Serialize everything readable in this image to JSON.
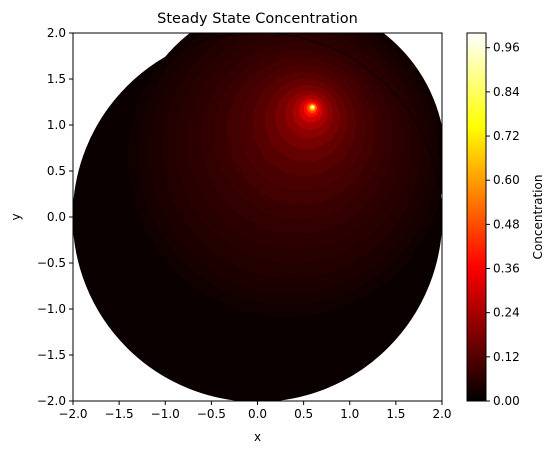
{
  "chart_data": {
    "type": "heatmap",
    "title": "Steady State Concentration",
    "xlabel": "x",
    "ylabel": "y",
    "xlim": [
      -2.0,
      2.0
    ],
    "ylim": [
      -2.0,
      2.0
    ],
    "x_ticks": [
      "−2.0",
      "−1.5",
      "−1.0",
      "−0.5",
      "0.0",
      "0.5",
      "1.0",
      "1.5",
      "2.0"
    ],
    "y_ticks": [
      "−2.0",
      "−1.5",
      "−1.0",
      "−0.5",
      "0.0",
      "0.5",
      "1.0",
      "1.5",
      "2.0"
    ],
    "domain": {
      "shape": "disk",
      "center": [
        0.0,
        0.0
      ],
      "radius": 2.0
    },
    "source_peak": {
      "x": 0.6,
      "y": 1.2,
      "value": 1.0
    },
    "colorbar": {
      "label": "Concentration",
      "colormap": "hot",
      "range": [
        0.0,
        1.0
      ],
      "ticks": [
        "0.00",
        "0.12",
        "0.24",
        "0.36",
        "0.48",
        "0.60",
        "0.72",
        "0.84",
        "0.96"
      ]
    },
    "levels": [
      0.0,
      0.04,
      0.08,
      0.12,
      0.16,
      0.2,
      0.24,
      0.28,
      0.32,
      0.36,
      0.4,
      0.44,
      0.48,
      0.52,
      0.56,
      0.6,
      0.64,
      0.68,
      0.72,
      0.76,
      0.8,
      0.84,
      0.88,
      0.92,
      0.96,
      1.0
    ],
    "grid": false
  }
}
